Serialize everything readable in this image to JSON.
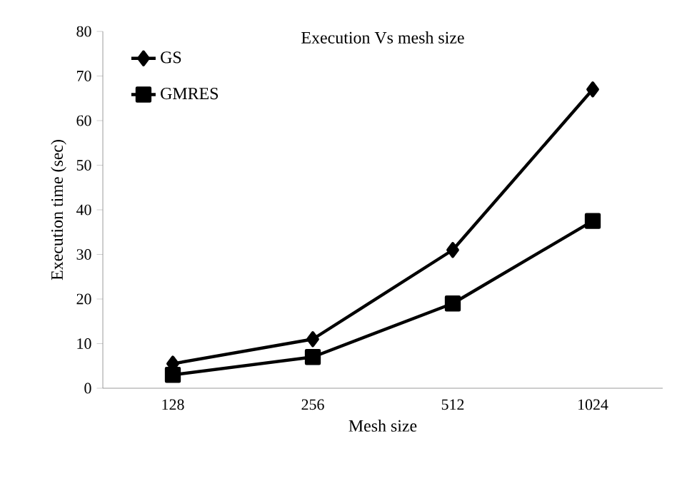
{
  "chart_data": {
    "type": "line",
    "title": "Execution Vs mesh size",
    "xlabel": "Mesh size",
    "ylabel": "Execution time (sec)",
    "categories": [
      "128",
      "256",
      "512",
      "1024"
    ],
    "series": [
      {
        "name": "GS",
        "color": "#000000",
        "marker": "diamond",
        "values": [
          5.5,
          11,
          31,
          67
        ]
      },
      {
        "name": "GMRES",
        "color": "#000000",
        "marker": "square",
        "values": [
          3,
          7,
          19,
          37.5
        ]
      }
    ],
    "ylim": [
      0,
      80
    ],
    "yticks": [
      0,
      10,
      20,
      30,
      40,
      50,
      60,
      70,
      80
    ],
    "legend": "top left",
    "grid": false,
    "line_style": "solid"
  }
}
